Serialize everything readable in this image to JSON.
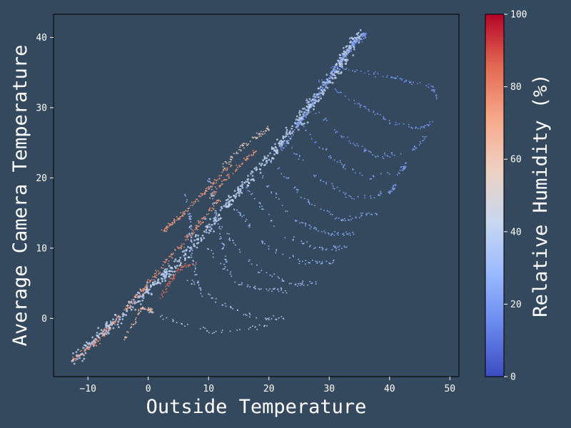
{
  "theme": {
    "background": "#34495e",
    "axes_color": "#000000",
    "text_color": "#ffffff"
  },
  "chart_data": {
    "type": "scatter",
    "title": "",
    "xlabel": "Outside Temperature",
    "ylabel": "Average Camera Temperature",
    "xlim": [
      -15.7,
      51.5
    ],
    "ylim": [
      -8.3,
      43.3
    ],
    "xticks": [
      -10,
      0,
      10,
      20,
      30,
      40,
      50
    ],
    "yticks": [
      0,
      10,
      20,
      30,
      40
    ],
    "grid": false,
    "legend": "none",
    "colorbar": {
      "label": "Relative Humidity (%)",
      "range": [
        0,
        100
      ],
      "ticks": [
        0,
        20,
        40,
        60,
        80,
        100
      ],
      "colormap": "coolwarm",
      "stops": [
        "#3b4cc0",
        "#6889ee",
        "#9abbff",
        "#c9d8ef",
        "#edd1c2",
        "#f7a889",
        "#e26952",
        "#b40426"
      ]
    },
    "clusters": [
      {
        "x": [
          -12.5,
          -5,
          5,
          15,
          25,
          30,
          35
        ],
        "y": [
          -6,
          0,
          8,
          18,
          28,
          34,
          40.5
        ],
        "humidity": 40,
        "spread": 1.2,
        "count": 700
      },
      {
        "x": [
          -12.5,
          -8,
          -4,
          0,
          4,
          8,
          12
        ],
        "y": [
          -6,
          -3,
          1,
          5,
          9,
          13,
          17
        ],
        "humidity": 75,
        "spread": 0.6,
        "count": 260
      },
      {
        "x": [
          22,
          26,
          30,
          34,
          36
        ],
        "y": [
          24,
          29,
          34,
          39,
          40.5
        ],
        "humidity": 20,
        "spread": 0.6,
        "count": 220
      },
      {
        "x": [
          2.5,
          6,
          10,
          14
        ],
        "y": [
          12.5,
          15,
          18.5,
          22
        ],
        "humidity": 75,
        "spread": 0.5,
        "count": 120
      },
      {
        "x": [
          10,
          13,
          16,
          18
        ],
        "y": [
          17,
          20,
          22.5,
          24
        ],
        "humidity": 75,
        "spread": 0.5,
        "count": 70
      },
      {
        "x": [
          12,
          15,
          18,
          20
        ],
        "y": [
          21,
          24,
          26,
          27
        ],
        "humidity": 58,
        "spread": 0.6,
        "count": 70
      },
      {
        "x": [
          2,
          5,
          8
        ],
        "y": [
          3,
          7,
          8
        ],
        "humidity": 85,
        "spread": 0.5,
        "count": 60
      },
      {
        "x": [
          -4,
          -1,
          1
        ],
        "y": [
          -3,
          1.5,
          1
        ],
        "humidity": 62,
        "spread": 0.5,
        "count": 60
      },
      {
        "x": [
          30,
          36,
          42,
          47,
          48
        ],
        "y": [
          36,
          35,
          34,
          33,
          31.5
        ],
        "humidity": 18,
        "spread": 0.5,
        "count": 70
      },
      {
        "x": [
          28,
          34,
          40,
          45,
          47
        ],
        "y": [
          34,
          31,
          28,
          27,
          28
        ],
        "humidity": 18,
        "spread": 0.5,
        "count": 70
      },
      {
        "x": [
          26,
          32,
          38,
          44,
          46
        ],
        "y": [
          31,
          26,
          23,
          24,
          26
        ],
        "humidity": 20,
        "spread": 0.5,
        "count": 70
      },
      {
        "x": [
          24,
          30,
          36,
          42,
          43
        ],
        "y": [
          29,
          23,
          20,
          21,
          22
        ],
        "humidity": 22,
        "spread": 0.5,
        "count": 65
      },
      {
        "x": [
          22,
          28,
          34,
          40,
          41
        ],
        "y": [
          26,
          20,
          17,
          18,
          19
        ],
        "humidity": 22,
        "spread": 0.5,
        "count": 65
      },
      {
        "x": [
          20,
          26,
          32,
          38
        ],
        "y": [
          23,
          17,
          14,
          15
        ],
        "humidity": 25,
        "spread": 0.5,
        "count": 60
      },
      {
        "x": [
          18,
          24,
          30,
          34
        ],
        "y": [
          21,
          14,
          12,
          12
        ],
        "humidity": 25,
        "spread": 0.5,
        "count": 55
      },
      {
        "x": [
          16,
          22,
          28,
          33
        ],
        "y": [
          19,
          12,
          10,
          10
        ],
        "humidity": 28,
        "spread": 0.5,
        "count": 55
      },
      {
        "x": [
          14,
          20,
          26,
          31
        ],
        "y": [
          16,
          10,
          8,
          8
        ],
        "humidity": 30,
        "spread": 0.5,
        "count": 55
      },
      {
        "x": [
          12,
          18,
          24,
          28
        ],
        "y": [
          13,
          7,
          5,
          5
        ],
        "humidity": 32,
        "spread": 0.5,
        "count": 50
      },
      {
        "x": [
          10,
          15,
          20,
          23
        ],
        "y": [
          10,
          5,
          4,
          4
        ],
        "humidity": 34,
        "spread": 0.5,
        "count": 45
      },
      {
        "x": [
          6,
          12,
          18,
          23
        ],
        "y": [
          6,
          2,
          0,
          0
        ],
        "humidity": 38,
        "spread": 0.5,
        "count": 45
      },
      {
        "x": [
          0,
          6,
          12,
          20
        ],
        "y": [
          1,
          -1,
          -2,
          -1
        ],
        "humidity": 40,
        "spread": 0.5,
        "count": 40
      },
      {
        "x": [
          6,
          7,
          7,
          8,
          9
        ],
        "y": [
          18,
          14,
          10,
          6,
          3
        ],
        "humidity": 32,
        "spread": 0.4,
        "count": 60
      },
      {
        "x": [
          10,
          11,
          12,
          13
        ],
        "y": [
          20,
          16,
          12,
          8
        ],
        "humidity": 32,
        "spread": 0.4,
        "count": 50
      }
    ]
  }
}
